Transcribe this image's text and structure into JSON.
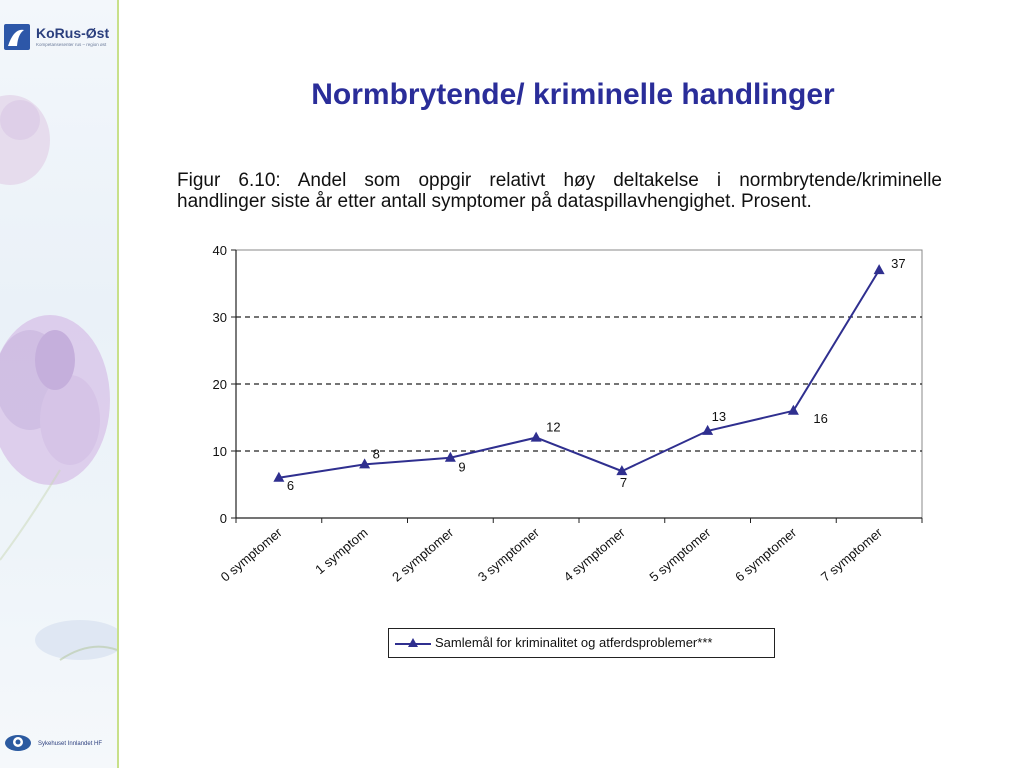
{
  "slide": {
    "title": "Normbrytende/ kriminelle handlinger",
    "caption_line1": "Figur 6.10: Andel som oppgir relativt høy deltakelse i normbrytende/kriminelle",
    "caption_line2": "handlinger siste år etter antall symptomer på dataspillavhengighet. Prosent."
  },
  "logos": {
    "top_name": "KoRus-Øst",
    "top_sub": "Kompetansesenter rus – region øst",
    "bottom_name": "Sykehuset Innlandet HF"
  },
  "colors": {
    "title": "#2a2d99",
    "series": "#2f2f8f",
    "accent": "#c8e08a"
  },
  "chart_data": {
    "type": "line",
    "title": "",
    "xlabel": "",
    "ylabel": "",
    "categories": [
      "0 symptomer",
      "1 symptom",
      "2 symptomer",
      "3 symptomer",
      "4 symptomer",
      "5 symptomer",
      "6 symptomer",
      "7 symptomer"
    ],
    "series": [
      {
        "name": "Samlemål for kriminalitet og atferdsproblemer***",
        "values": [
          6,
          8,
          9,
          12,
          7,
          13,
          16,
          37
        ]
      }
    ],
    "ylim": [
      0,
      40
    ],
    "yticks": [
      0,
      10,
      20,
      30,
      40
    ],
    "grid": "dashed horizontal",
    "legend_position": "bottom",
    "marker": "triangle"
  }
}
